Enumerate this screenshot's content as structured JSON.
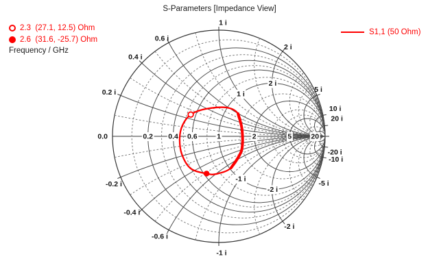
{
  "title": "S-Parameters [Impedance View]",
  "marker_legend": {
    "rows": [
      {
        "marker": "open-circle",
        "freq_ghz": 2.3,
        "label": "2.3  (27.1, 12.5) Ohm"
      },
      {
        "marker": "filled-circle",
        "freq_ghz": 2.6,
        "label": "2.6  (31.6, -25.7) Ohm"
      }
    ],
    "axis_label": "Frequency / GHz"
  },
  "series_legend": {
    "label": "S1,1 (50 Ohm)",
    "color": "#fe0000"
  },
  "colors": {
    "trace": "#fe0000",
    "grid_solid": "#4d4d4d",
    "grid_dashed": "#7a7a7a",
    "outline": "#333333",
    "text": "#111111"
  },
  "chart_data": {
    "type": "line",
    "subtype": "smith-chart-impedance",
    "title": "S-Parameters [Impedance View]",
    "normalization_ohm": 50,
    "frequency_unit": "GHz",
    "grid": {
      "resistance_solid": [
        0.2,
        0.4,
        0.6,
        1,
        2,
        5,
        20
      ],
      "resistance_dashed": [
        0.1,
        0.3,
        0.5,
        0.8,
        1.5,
        3,
        4,
        10
      ],
      "reactance_solid": [
        0.2,
        -0.2,
        0.4,
        -0.4,
        0.6,
        -0.6,
        1,
        -1,
        2,
        -2,
        5,
        -5,
        10,
        -10,
        20,
        -20
      ],
      "reactance_dashed": [
        0.1,
        -0.1,
        0.3,
        -0.3,
        0.5,
        -0.5,
        0.8,
        -0.8,
        1.5,
        -1.5,
        3,
        -3,
        4,
        -4,
        7,
        -7
      ]
    },
    "axis_labels": [
      {
        "r": 0,
        "text": "0.0"
      },
      {
        "r": 0.2,
        "text": "0.2"
      },
      {
        "r": 0.4,
        "text": "0.4"
      },
      {
        "r": 0.6,
        "text": "0.6"
      },
      {
        "r": 1,
        "text": "1"
      },
      {
        "r": 2,
        "text": "2"
      },
      {
        "r": 5,
        "text": "5"
      },
      {
        "r": 20,
        "text": "20"
      }
    ],
    "rim_labels": [
      {
        "x": 0.2,
        "text": "0.2 i"
      },
      {
        "x": -0.2,
        "text": "-0.2 i"
      },
      {
        "x": 0.4,
        "text": "0.4 i"
      },
      {
        "x": -0.4,
        "text": "-0.4 i"
      },
      {
        "x": 0.6,
        "text": "0.6 i"
      },
      {
        "x": -0.6,
        "text": "-0.6 i"
      },
      {
        "x": 1,
        "text": "1 i"
      },
      {
        "x": -1,
        "text": "-1 i"
      },
      {
        "x": 2,
        "text": "2 i"
      },
      {
        "x": -2,
        "text": "-2 i"
      },
      {
        "x": 5,
        "text": "5 i"
      },
      {
        "x": -5,
        "text": "-5 i"
      },
      {
        "x": 10,
        "text": "10 i"
      },
      {
        "x": -10,
        "text": "-10 i"
      },
      {
        "x": 20,
        "text": "20 i"
      },
      {
        "x": -20,
        "text": "-20 i"
      }
    ],
    "interior_labels": [
      {
        "x": 1,
        "text": "1 i"
      },
      {
        "x": -1,
        "text": "-1 i"
      },
      {
        "x": 2,
        "text": "2 i"
      },
      {
        "x": -2,
        "text": "-2 i"
      }
    ],
    "series": [
      {
        "name": "S1,1 (50 Ohm)",
        "color": "#fe0000",
        "trace_gamma": [
          [
            -0.264,
            0.205
          ],
          [
            -0.123,
            0.258
          ],
          [
            0.071,
            0.271
          ],
          [
            0.181,
            0.213
          ],
          [
            0.219,
            0.058
          ],
          [
            0.213,
            -0.135
          ],
          [
            0.116,
            -0.297
          ],
          [
            -0.026,
            -0.355
          ],
          [
            -0.115,
            -0.351
          ],
          [
            -0.265,
            -0.303
          ],
          [
            -0.348,
            -0.168
          ],
          [
            -0.368,
            -0.019
          ],
          [
            -0.342,
            0.103
          ]
        ],
        "overlap_segment_indices": [
          3,
          4,
          5,
          6
        ],
        "markers": [
          {
            "style": "open",
            "freq_ghz": 2.3,
            "impedance_ohm": [
              27.1,
              12.5
            ],
            "gamma": [
              -0.264,
              0.205
            ]
          },
          {
            "style": "filled",
            "freq_ghz": 2.6,
            "impedance_ohm": [
              31.6,
              -25.7
            ],
            "gamma": [
              -0.115,
              -0.351
            ]
          }
        ]
      }
    ]
  }
}
